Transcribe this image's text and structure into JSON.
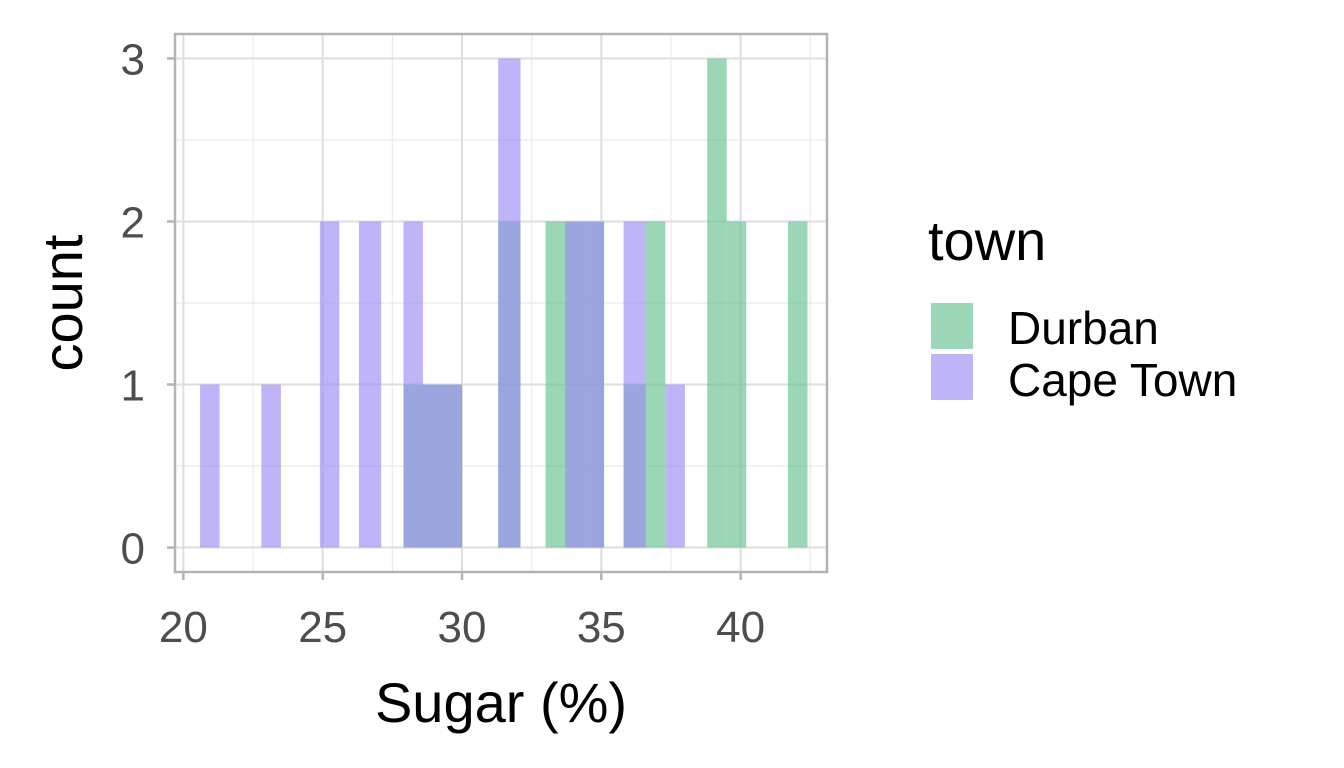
{
  "chart_data": {
    "type": "bar",
    "subtype": "histogram",
    "xlabel": "Sugar (%)",
    "ylabel": "count",
    "xlim": [
      19.7,
      43.1
    ],
    "ylim": [
      -0.15,
      3.15
    ],
    "x_ticks": [
      20,
      25,
      30,
      35,
      40
    ],
    "y_ticks": [
      0,
      1,
      2,
      3
    ],
    "grid": true,
    "legend_title": "town",
    "legend_position": "right",
    "series": [
      {
        "name": "Durban",
        "color": "#66c28f",
        "bins": [
          {
            "x0": 31.3,
            "x1": 32.1,
            "value": 2
          },
          {
            "x0": 33.0,
            "x1": 33.7,
            "value": 2
          },
          {
            "x0": 33.7,
            "x1": 34.4,
            "value": 2
          },
          {
            "x0": 34.4,
            "x1": 35.1,
            "value": 2
          },
          {
            "x0": 35.8,
            "x1": 36.6,
            "value": 1
          },
          {
            "x0": 36.6,
            "x1": 37.3,
            "value": 2
          },
          {
            "x0": 38.8,
            "x1": 39.5,
            "value": 3
          },
          {
            "x0": 39.5,
            "x1": 40.2,
            "value": 2
          },
          {
            "x0": 41.7,
            "x1": 42.4,
            "value": 2
          },
          {
            "x0": 27.9,
            "x1": 28.6,
            "value": 1
          },
          {
            "x0": 28.6,
            "x1": 29.3,
            "value": 1
          },
          {
            "x0": 29.3,
            "x1": 30.0,
            "value": 1
          }
        ]
      },
      {
        "name": "Cape Town",
        "color": "#9b8cf5",
        "bins": [
          {
            "x0": 20.6,
            "x1": 21.3,
            "value": 1
          },
          {
            "x0": 22.8,
            "x1": 23.5,
            "value": 1
          },
          {
            "x0": 24.9,
            "x1": 25.6,
            "value": 2
          },
          {
            "x0": 26.3,
            "x1": 27.1,
            "value": 2
          },
          {
            "x0": 27.9,
            "x1": 28.6,
            "value": 2
          },
          {
            "x0": 28.6,
            "x1": 29.3,
            "value": 1
          },
          {
            "x0": 29.3,
            "x1": 30.0,
            "value": 1
          },
          {
            "x0": 31.3,
            "x1": 32.1,
            "value": 3
          },
          {
            "x0": 33.7,
            "x1": 34.4,
            "value": 2
          },
          {
            "x0": 34.4,
            "x1": 35.1,
            "value": 2
          },
          {
            "x0": 35.8,
            "x1": 36.6,
            "value": 2
          },
          {
            "x0": 37.3,
            "x1": 38.0,
            "value": 1
          }
        ]
      }
    ]
  }
}
